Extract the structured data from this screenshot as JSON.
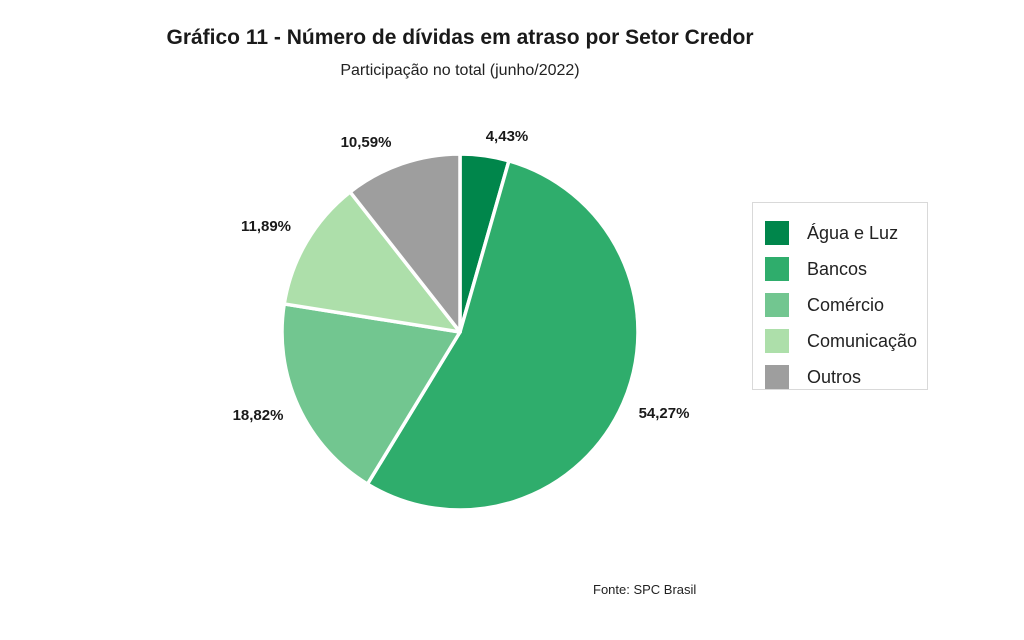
{
  "title": "Gráfico 11 - Número de dívidas em atraso por Setor Credor",
  "subtitle": "Participação no total (junho/2022)",
  "source": "Fonte: SPC Brasil",
  "chart_data": {
    "type": "pie",
    "categories": [
      "Água e Luz",
      "Bancos",
      "Comércio",
      "Comunicação",
      "Outros"
    ],
    "values": [
      4.43,
      54.27,
      18.82,
      11.89,
      10.59
    ],
    "value_labels": [
      "4,43%",
      "54,27%",
      "18,82%",
      "11,89%",
      "10,59%"
    ],
    "colors": [
      "#00864b",
      "#2fad6c",
      "#72c690",
      "#addfaa",
      "#9e9e9e"
    ],
    "start": "12 o'clock",
    "direction": "clockwise",
    "legend_position": "right"
  }
}
